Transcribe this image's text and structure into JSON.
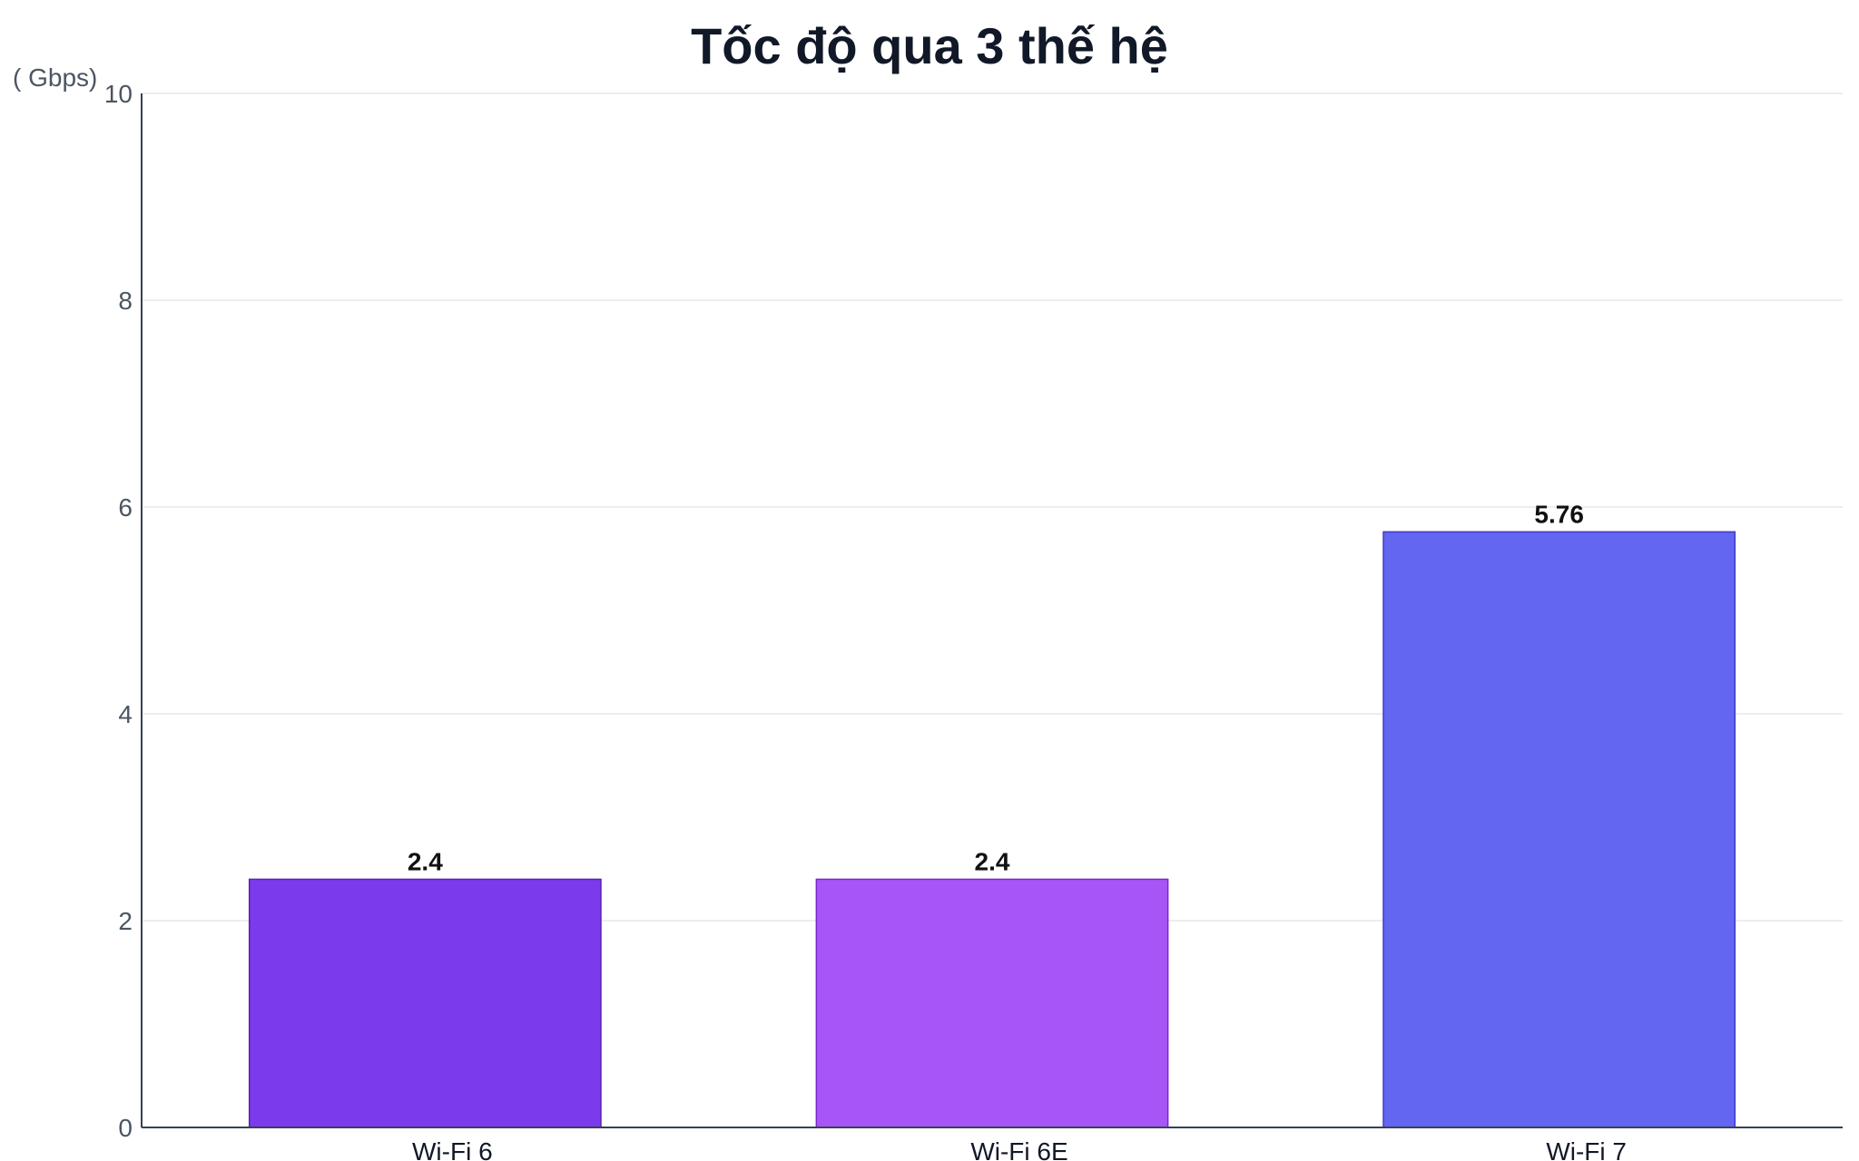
{
  "chart_data": {
    "type": "bar",
    "title": "Tốc độ qua 3 thế hệ",
    "ylabel": "( Gbps)",
    "xlabel": "",
    "categories": [
      "Wi-Fi 6",
      "Wi-Fi 6E",
      "Wi-Fi 7"
    ],
    "values": [
      2.4,
      2.4,
      5.76
    ],
    "data_labels": [
      "2.4",
      "2.4",
      "5.76"
    ],
    "colors": [
      "#7c3aed",
      "#a855f7",
      "#6366f1"
    ],
    "border_colors": [
      "#5b21b6",
      "#7e22ce",
      "#4338ca"
    ],
    "ylim": [
      0,
      10
    ],
    "yticks": [
      0,
      2,
      4,
      6,
      8,
      10
    ],
    "ytick_labels": [
      "0",
      "2",
      "4",
      "6",
      "8",
      "10"
    ],
    "grid": true,
    "grid_color": "#e5e7eb",
    "axis_color": "#374151"
  }
}
